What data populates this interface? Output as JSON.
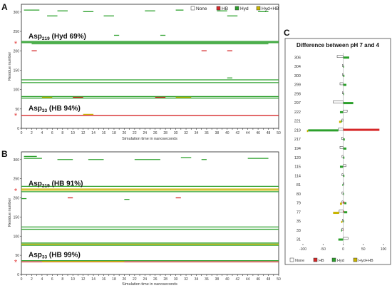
{
  "chart_data": [
    {
      "panel": "A",
      "type": "heatmap",
      "xlabel": "Simulation time in nanoseconds",
      "ylabel": "Residue number",
      "xlim": [
        0,
        50
      ],
      "ylim": [
        0,
        320
      ],
      "xticks": [
        0,
        1,
        2,
        3,
        4,
        5,
        6,
        7,
        8,
        9,
        10,
        11,
        12,
        13,
        14,
        15,
        16,
        17,
        18,
        19,
        20,
        21,
        22,
        23,
        24,
        25,
        26,
        27,
        28,
        29,
        30,
        31,
        32,
        33,
        34,
        35,
        36,
        37,
        38,
        39,
        40,
        41,
        42,
        43,
        44,
        45,
        46,
        47,
        48,
        49,
        50
      ],
      "yticks": [
        0,
        50,
        100,
        150,
        200,
        250,
        300
      ],
      "annotations": [
        {
          "base": "Asp",
          "sub": "219",
          "rest": " (Hyd 69%)",
          "residue": 219
        },
        {
          "base": "Asp",
          "sub": "33",
          "rest": " (HB 94%)",
          "residue": 33
        }
      ],
      "legend": [
        "None",
        "HB",
        "Hyd",
        "Hyd+HB"
      ],
      "legend_colors": {
        "None": "#ffffff",
        "HB": "#d62728",
        "Hyd": "#2ca02c",
        "Hyd+HB": "#c8b400"
      },
      "marker": "*",
      "marker_color": "#e23a3a",
      "series": [
        {
          "name": "Hyd",
          "segments": [
            {
              "y": 305,
              "x": [
                0.5,
                3.5
              ]
            },
            {
              "y": 303,
              "x": [
                7,
                9
              ]
            },
            {
              "y": 301,
              "x": [
                12,
                14
              ]
            },
            {
              "y": 303,
              "x": [
                24,
                26
              ]
            },
            {
              "y": 305,
              "x": [
                30,
                31.5
              ]
            },
            {
              "y": 303,
              "x": [
                38,
                40
              ]
            },
            {
              "y": 301,
              "x": [
                46,
                48
              ]
            },
            {
              "y": 290,
              "x": [
                5,
                7
              ]
            },
            {
              "y": 290,
              "x": [
                16,
                18
              ]
            },
            {
              "y": 290,
              "x": [
                40,
                42
              ]
            },
            {
              "y": 240,
              "x": [
                18,
                19
              ]
            },
            {
              "y": 240,
              "x": [
                27,
                28
              ]
            },
            {
              "y": 224,
              "x": [
                0,
                50
              ]
            },
            {
              "y": 221,
              "x": [
                0,
                50
              ]
            },
            {
              "y": 218,
              "x": [
                2,
                48
              ]
            },
            {
              "y": 125,
              "x": [
                0,
                50
              ]
            },
            {
              "y": 118,
              "x": [
                0,
                50
              ]
            },
            {
              "y": 130,
              "x": [
                40,
                41
              ]
            },
            {
              "y": 82,
              "x": [
                0,
                50
              ]
            },
            {
              "y": 78,
              "x": [
                0,
                50
              ]
            }
          ]
        },
        {
          "name": "HB",
          "segments": [
            {
              "y": 200,
              "x": [
                2,
                3
              ]
            },
            {
              "y": 200,
              "x": [
                35,
                36
              ]
            },
            {
              "y": 200,
              "x": [
                40,
                41
              ]
            },
            {
              "y": 80,
              "x": [
                10,
                12
              ]
            },
            {
              "y": 80,
              "x": [
                26,
                28
              ]
            },
            {
              "y": 33,
              "x": [
                0,
                50
              ]
            }
          ]
        },
        {
          "name": "Hyd+HB",
          "segments": [
            {
              "y": 80,
              "x": [
                4,
                6
              ]
            },
            {
              "y": 80,
              "x": [
                30,
                33
              ]
            },
            {
              "y": 36,
              "x": [
                12,
                14
              ]
            }
          ]
        }
      ]
    },
    {
      "panel": "B",
      "type": "heatmap",
      "xlabel": "Simulation time in nanoseconds",
      "ylabel": "Residue number",
      "xlim": [
        0,
        50
      ],
      "ylim": [
        0,
        320
      ],
      "xticks": [
        0,
        1,
        2,
        3,
        4,
        5,
        6,
        7,
        8,
        9,
        10,
        11,
        12,
        13,
        14,
        15,
        16,
        17,
        18,
        19,
        20,
        21,
        22,
        23,
        24,
        25,
        26,
        27,
        28,
        29,
        30,
        31,
        32,
        33,
        34,
        35,
        36,
        37,
        38,
        39,
        40,
        41,
        42,
        43,
        44,
        45,
        46,
        47,
        48,
        49,
        50
      ],
      "yticks": [
        0,
        50,
        100,
        150,
        200,
        250,
        300
      ],
      "annotations": [
        {
          "base": "Asp",
          "sub": "219",
          "rest": " (HB 91%)",
          "residue": 219
        },
        {
          "base": "Asp",
          "sub": "33",
          "rest": " (HB 99%)",
          "residue": 33
        }
      ],
      "marker": "*",
      "marker_color": "#e23a3a",
      "series": [
        {
          "name": "Hyd",
          "segments": [
            {
              "y": 308,
              "x": [
                0.5,
                3
              ]
            },
            {
              "y": 303,
              "x": [
                0.5,
                4
              ]
            },
            {
              "y": 300,
              "x": [
                7,
                10
              ]
            },
            {
              "y": 300,
              "x": [
                13,
                16
              ]
            },
            {
              "y": 300,
              "x": [
                22,
                27
              ]
            },
            {
              "y": 305,
              "x": [
                31,
                33
              ]
            },
            {
              "y": 300,
              "x": [
                35,
                36
              ]
            },
            {
              "y": 303,
              "x": [
                44,
                48
              ]
            },
            {
              "y": 230,
              "x": [
                0,
                50
              ]
            },
            {
              "y": 216,
              "x": [
                0,
                50
              ]
            },
            {
              "y": 198,
              "x": [
                0,
                1
              ]
            },
            {
              "y": 196,
              "x": [
                20,
                21
              ]
            },
            {
              "y": 124,
              "x": [
                0,
                50
              ]
            },
            {
              "y": 118,
              "x": [
                0,
                50
              ]
            },
            {
              "y": 82,
              "x": [
                0,
                50
              ]
            },
            {
              "y": 76,
              "x": [
                0,
                50
              ]
            },
            {
              "y": 36,
              "x": [
                0,
                50
              ]
            }
          ]
        },
        {
          "name": "HB",
          "segments": [
            {
              "y": 200,
              "x": [
                9,
                10
              ]
            },
            {
              "y": 200,
              "x": [
                30,
                31
              ]
            },
            {
              "y": 33,
              "x": [
                0,
                50
              ]
            }
          ]
        },
        {
          "name": "Hyd+HB",
          "segments": [
            {
              "y": 223,
              "x": [
                0,
                50
              ]
            },
            {
              "y": 220,
              "x": [
                0,
                50
              ]
            },
            {
              "y": 79,
              "x": [
                0,
                50
              ]
            },
            {
              "y": 34,
              "x": [
                4,
                20
              ]
            }
          ]
        }
      ]
    },
    {
      "panel": "C",
      "type": "bar",
      "orientation": "horizontal",
      "title": "Difference between pH 7 and 4",
      "xlim": [
        -100,
        100
      ],
      "xticks": [
        -100,
        -50,
        0,
        50,
        100
      ],
      "categories": [
        "306",
        "304",
        "300",
        "299",
        "298",
        "297",
        "222",
        "221",
        "219",
        "217",
        "194",
        "120",
        "115",
        "114",
        "81",
        "80",
        "79",
        "77",
        "35",
        "33",
        "31"
      ],
      "legend": [
        "None",
        "HB",
        "Hyd",
        "Hyd+HB"
      ],
      "legend_colors": {
        "None": "#ffffff",
        "HB": "#d62728",
        "Hyd": "#2ca02c",
        "Hyd+HB": "#c8b400"
      },
      "series": [
        {
          "name": "None",
          "values": [
            -15,
            -2,
            -2,
            -8,
            -2,
            -25,
            10,
            -3,
            -12,
            -4,
            -8,
            -3,
            7,
            -3,
            2,
            -3,
            -3,
            -10,
            -2,
            -3,
            12
          ]
        },
        {
          "name": "HB",
          "values": [
            0,
            0,
            0,
            0,
            0,
            0,
            0,
            0,
            90,
            0,
            0,
            0,
            0,
            0,
            0,
            0,
            3,
            2,
            0,
            1,
            0
          ]
        },
        {
          "name": "Hyd",
          "values": [
            15,
            2,
            3,
            8,
            2,
            25,
            -8,
            -2,
            -75,
            4,
            8,
            3,
            -8,
            3,
            -2,
            2,
            5,
            8,
            2,
            -2,
            -12
          ]
        },
        {
          "name": "Hyd+HB",
          "values": [
            0,
            0,
            0,
            0,
            0,
            0,
            0,
            -5,
            -3,
            0,
            0,
            0,
            0,
            0,
            0,
            0,
            -5,
            -15,
            -3,
            0,
            0
          ]
        }
      ]
    }
  ]
}
